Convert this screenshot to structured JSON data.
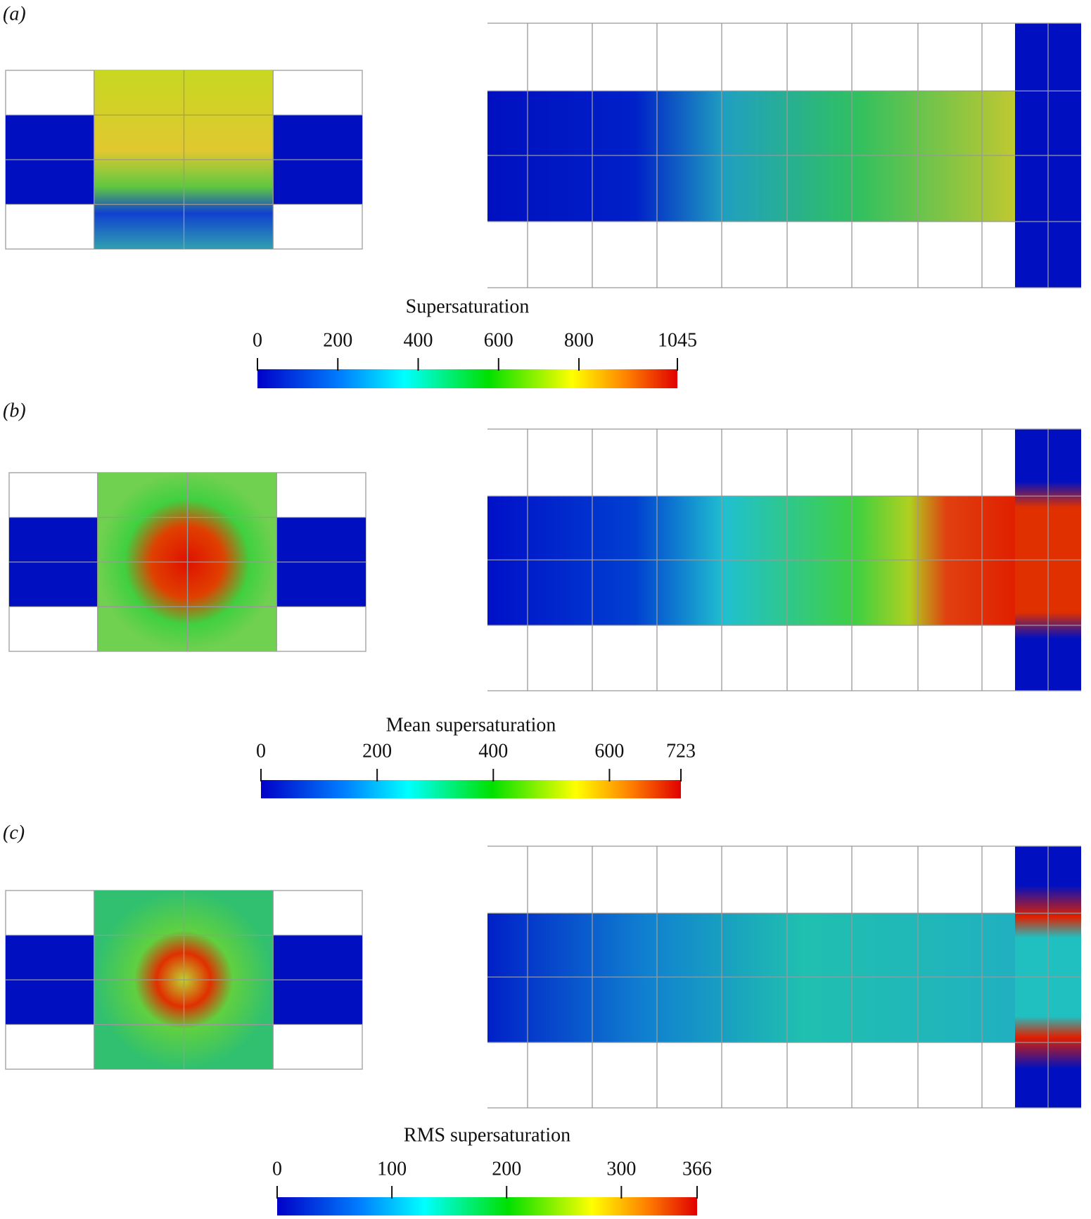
{
  "chart_data": [
    {
      "type": "colorbar",
      "label": "(a)",
      "title": "Supersaturation",
      "xlim": [
        0,
        1045
      ],
      "xticks": [
        0,
        200,
        400,
        600,
        800,
        1045
      ]
    },
    {
      "type": "colorbar",
      "label": "(b)",
      "title": "Mean supersaturation",
      "xlim": [
        0,
        723
      ],
      "xticks": [
        0,
        200,
        400,
        600,
        723
      ]
    },
    {
      "type": "colorbar",
      "label": "(c)",
      "title": "RMS supersaturation",
      "xlim": [
        0,
        366
      ],
      "xticks": [
        0,
        100,
        200,
        300,
        366
      ]
    }
  ]
}
